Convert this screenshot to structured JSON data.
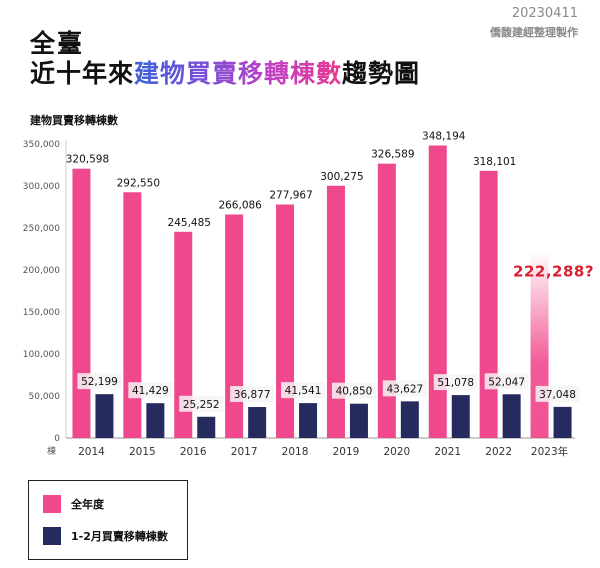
{
  "header": {
    "date": "20230411",
    "source": "僑馥建經整理製作",
    "title_line1": "全臺",
    "title_line2_prefix": "近十年來",
    "title_line2_highlight": "建物買賣移轉棟數",
    "title_line2_suffix": "趨勢圖"
  },
  "colors": {
    "full_year": "#f0488c",
    "jan_feb": "#252b5e",
    "forecast_label": "#d81f2f",
    "axis_text": "#555555",
    "label_box": "#f4f4f4"
  },
  "legend": {
    "full_year_label": "全年度",
    "jan_feb_label": "1-2月買賣移轉棟數"
  },
  "chart_data": {
    "type": "bar",
    "title": "",
    "ylabel": "建物買賣移轉棟數",
    "y_unit": "棟",
    "ylim": [
      0,
      350000
    ],
    "y_ticks": [
      "0",
      "50,000",
      "100,000",
      "150,000",
      "200,000",
      "250,000",
      "300,000",
      "350,000"
    ],
    "categories": [
      "2014",
      "2015",
      "2016",
      "2017",
      "2018",
      "2019",
      "2020",
      "2021",
      "2022",
      "2023年"
    ],
    "series": [
      {
        "name": "全年度",
        "values": [
          320598,
          292550,
          245485,
          266086,
          277967,
          300275,
          326589,
          348194,
          318101,
          222288
        ],
        "labels": [
          "320,598",
          "292,550",
          "245,485",
          "266,086",
          "277,967",
          "300,275",
          "326,589",
          "348,194",
          "318,101",
          "222,288?"
        ],
        "forecast_last": true
      },
      {
        "name": "1-2月買賣移轉棟數",
        "values": [
          52199,
          41429,
          25252,
          36877,
          41541,
          40850,
          43627,
          51078,
          52047,
          37048
        ],
        "labels": [
          "52,199",
          "41,429",
          "25,252",
          "36,877",
          "41,541",
          "40,850",
          "43,627",
          "51,078",
          "52,047",
          "37,048"
        ]
      }
    ],
    "grid": false,
    "legend_position": "bottom-left"
  }
}
